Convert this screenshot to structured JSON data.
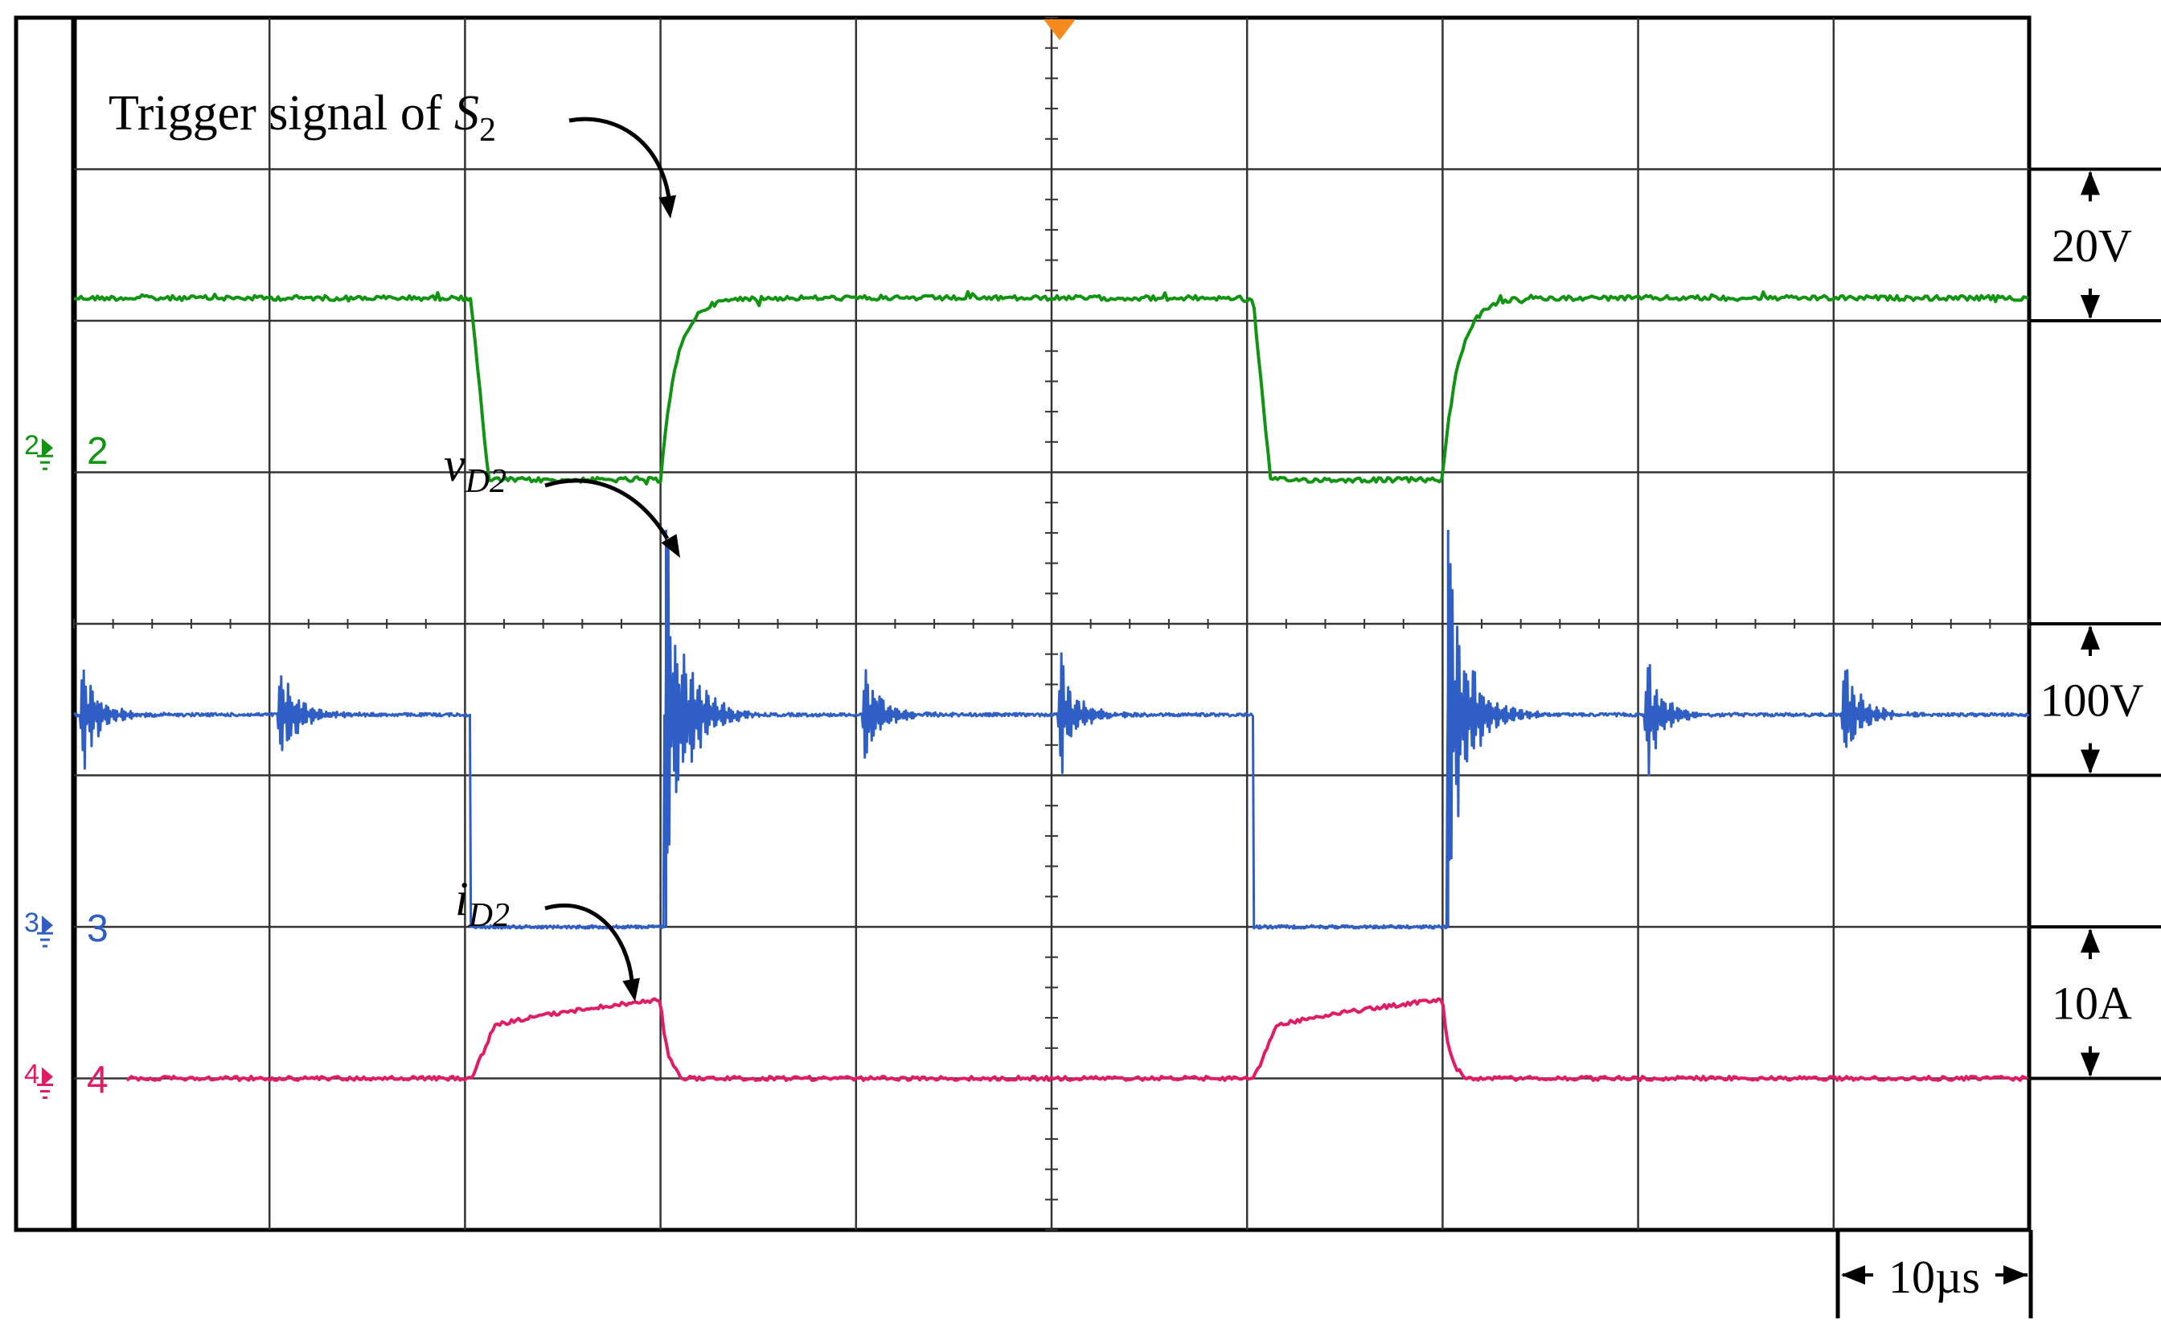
{
  "chart_data": {
    "type": "line",
    "title": "",
    "xlabel": "",
    "ylabel": "",
    "grid": true,
    "x_divisions": 10,
    "y_divisions": 8,
    "time_per_division": "10µs",
    "xlim": [
      0,
      100
    ],
    "x_unit": "µs",
    "channels": [
      {
        "id": "2",
        "color": "#119411",
        "scale": "20V",
        "ground_div": 1.15,
        "levels_div": {
          "high": 2.15,
          "low": 0.95
        },
        "edges": [
          {
            "t": 20.3,
            "to": "low"
          },
          {
            "t": 30.0,
            "to": "high"
          },
          {
            "t": 60.3,
            "to": "low"
          },
          {
            "t": 70.0,
            "to": "high"
          }
        ],
        "annotation": {
          "prefix": "Trigger signal of ",
          "symbol": "S",
          "subscript": "2"
        }
      },
      {
        "id": "3",
        "color": "#2f5fc4",
        "scale": "100V",
        "ground_div": -2.0,
        "levels_div": {
          "high": -0.6,
          "low": -2.0
        },
        "edges": [
          {
            "t": 20.3,
            "to": "low"
          },
          {
            "t": 30.2,
            "to": "high"
          },
          {
            "t": 60.3,
            "to": "low"
          },
          {
            "t": 70.2,
            "to": "high"
          }
        ],
        "ringing_us": [
          0.3,
          10.4,
          30.2,
          40.3,
          50.3,
          70.2,
          80.3,
          90.4
        ],
        "annotation": {
          "symbol": "v",
          "subscript": "D2"
        }
      },
      {
        "id": "4",
        "color": "#e11c66",
        "scale": "10A",
        "ground_div": -3.0,
        "levels_div": {
          "base": -3.0,
          "ramp_start": -2.72,
          "ramp_end": -2.48
        },
        "pulses": [
          {
            "start": 20.3,
            "end": 30.0
          },
          {
            "start": 60.3,
            "end": 70.0
          }
        ],
        "annotation": {
          "symbol": "i",
          "subscript": "D2"
        }
      }
    ]
  }
}
